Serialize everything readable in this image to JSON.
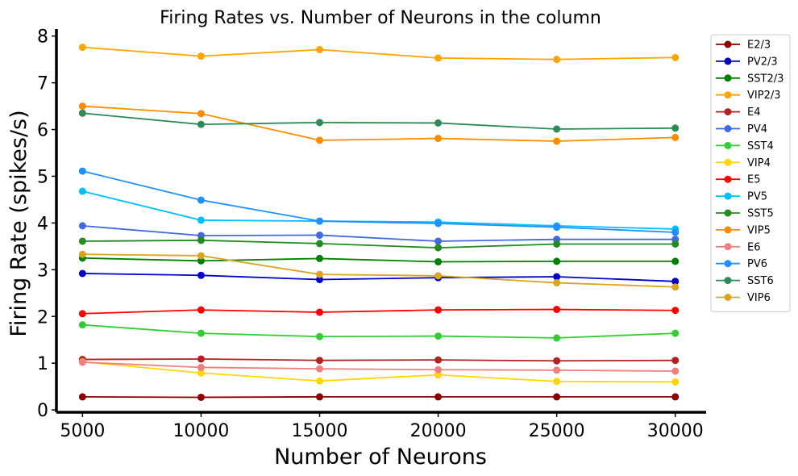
{
  "chart_data": {
    "type": "line",
    "title": "Firing Rates vs. Number of Neurons in the column",
    "xlabel": "Number of Neurons",
    "ylabel": "Firing Rate (spikes/s)",
    "x": [
      5000,
      10000,
      15000,
      20000,
      25000,
      30000
    ],
    "xticks": [
      "5000",
      "10000",
      "15000",
      "20000",
      "25000",
      "30000"
    ],
    "yticks": [
      "0",
      "1",
      "2",
      "3",
      "4",
      "5",
      "6",
      "7",
      "8"
    ],
    "xlim": [
      3900,
      31300
    ],
    "ylim": [
      -0.05,
      8.15
    ],
    "legend_position": "top-right outside",
    "series": [
      {
        "name": "E2/3",
        "color": "#8b0000",
        "values": [
          0.28,
          0.27,
          0.28,
          0.28,
          0.28,
          0.28
        ]
      },
      {
        "name": "PV2/3",
        "color": "#0000cd",
        "values": [
          2.92,
          2.88,
          2.79,
          2.83,
          2.85,
          2.75
        ]
      },
      {
        "name": "SST2/3",
        "color": "#008000",
        "values": [
          3.25,
          3.19,
          3.24,
          3.17,
          3.18,
          3.18
        ]
      },
      {
        "name": "VIP2/3",
        "color": "#ffa500",
        "values": [
          7.76,
          7.57,
          7.71,
          7.53,
          7.5,
          7.54
        ]
      },
      {
        "name": "E4",
        "color": "#b22222",
        "values": [
          1.08,
          1.09,
          1.06,
          1.07,
          1.05,
          1.06
        ]
      },
      {
        "name": "PV4",
        "color": "#4169e1",
        "values": [
          3.94,
          3.73,
          3.74,
          3.61,
          3.65,
          3.65
        ]
      },
      {
        "name": "SST4",
        "color": "#32cd32",
        "values": [
          1.82,
          1.64,
          1.57,
          1.58,
          1.54,
          1.64
        ]
      },
      {
        "name": "VIP4",
        "color": "#ffd700",
        "values": [
          1.03,
          0.79,
          0.62,
          0.75,
          0.61,
          0.6
        ]
      },
      {
        "name": "E5",
        "color": "#ff0000",
        "values": [
          2.06,
          2.14,
          2.09,
          2.14,
          2.15,
          2.13
        ]
      },
      {
        "name": "PV5",
        "color": "#00bfff",
        "values": [
          4.68,
          4.06,
          4.04,
          4.02,
          3.94,
          3.87
        ]
      },
      {
        "name": "SST5",
        "color": "#228b22",
        "values": [
          3.61,
          3.63,
          3.56,
          3.47,
          3.55,
          3.55
        ]
      },
      {
        "name": "VIP5",
        "color": "#ff8c00",
        "values": [
          6.5,
          6.34,
          5.77,
          5.81,
          5.75,
          5.83
        ]
      },
      {
        "name": "E6",
        "color": "#f08080",
        "values": [
          1.02,
          0.91,
          0.88,
          0.86,
          0.85,
          0.83
        ]
      },
      {
        "name": "PV6",
        "color": "#1e90ff",
        "values": [
          5.11,
          4.49,
          4.04,
          3.99,
          3.91,
          3.8
        ]
      },
      {
        "name": "SST6",
        "color": "#2e8b57",
        "values": [
          6.35,
          6.11,
          6.15,
          6.14,
          6.01,
          6.03
        ]
      },
      {
        "name": "VIP6",
        "color": "#daa520",
        "values": [
          3.33,
          3.3,
          2.9,
          2.87,
          2.72,
          2.63
        ]
      }
    ]
  }
}
